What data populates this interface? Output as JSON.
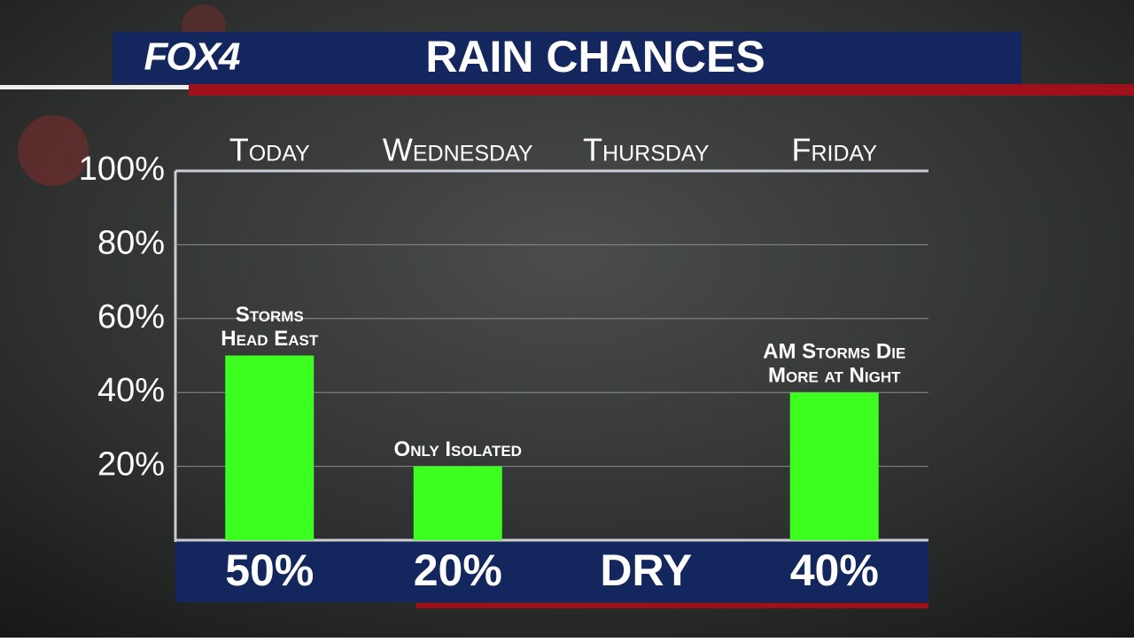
{
  "logo": "FOX4",
  "chart_data": {
    "type": "bar",
    "title": "RAIN CHANCES",
    "categories": [
      "Today",
      "Wednesday",
      "Thursday",
      "Friday"
    ],
    "values": [
      50,
      20,
      0,
      40
    ],
    "value_labels": [
      "50%",
      "20%",
      "DRY",
      "40%"
    ],
    "annotations": [
      [
        "Storms",
        "Head East"
      ],
      [
        "Only Isolated"
      ],
      null,
      [
        "AM Storms Die",
        "More at Night"
      ]
    ],
    "color": "#3dff1f",
    "ylim": [
      0,
      100
    ],
    "yticks": [
      {
        "value": 20,
        "label": "20%"
      },
      {
        "value": 40,
        "label": "40%"
      },
      {
        "value": 60,
        "label": "60%"
      },
      {
        "value": 80,
        "label": "80%"
      },
      {
        "value": 100,
        "label": "100%"
      }
    ],
    "grid": true
  }
}
